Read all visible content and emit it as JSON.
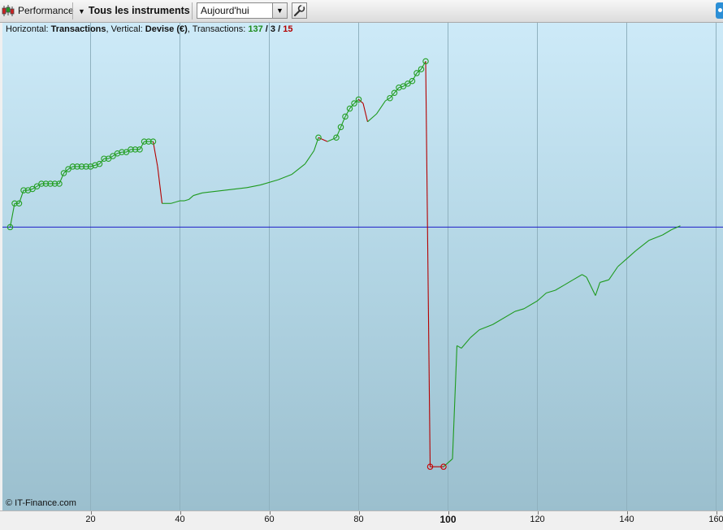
{
  "toolbar": {
    "performance_label": "Performance",
    "instruments_label": "Tous les instruments",
    "period_value": "Aujourd'hui"
  },
  "info": {
    "horizontal_key": "Horizontal: ",
    "horizontal_val": "Transactions",
    "vertical_key": ", Vertical: ",
    "vertical_val": "Devise (€)",
    "transactions_key": ", Transactions: ",
    "count_green": "137",
    "slash1": " / ",
    "count_black": "3",
    "slash2": " / ",
    "count_red": "15"
  },
  "copyright": "© IT-Finance.com",
  "colors": {
    "up": "#1e9a1e",
    "down": "#b40000",
    "baseline": "#1c1cc8",
    "marker_up": "#23a023",
    "marker_down": "#c80000"
  },
  "chart_data": {
    "type": "line",
    "title": "",
    "xlabel": "",
    "ylabel": "",
    "xlim": [
      1,
      160
    ],
    "x_ticks": [
      20,
      40,
      60,
      80,
      100,
      120,
      140,
      160
    ],
    "x_tick_bold": [
      100
    ],
    "baseline_y": 0,
    "ylim": [
      -107,
      77
    ],
    "grid": "vertical-lines",
    "series": [
      {
        "name": "",
        "points": [
          [
            2,
            0
          ],
          [
            3,
            9
          ],
          [
            4,
            9
          ],
          [
            5,
            14
          ],
          [
            6,
            14
          ],
          [
            7,
            14.5
          ],
          [
            8,
            15.5
          ],
          [
            9,
            16.5
          ],
          [
            10,
            16.5
          ],
          [
            11,
            16.5
          ],
          [
            12,
            16.5
          ],
          [
            13,
            16.5
          ],
          [
            14,
            20.5
          ],
          [
            15,
            22
          ],
          [
            16,
            23
          ],
          [
            17,
            23
          ],
          [
            18,
            23
          ],
          [
            19,
            23
          ],
          [
            20,
            23
          ],
          [
            21,
            23.5
          ],
          [
            22,
            24
          ],
          [
            23,
            26
          ],
          [
            24,
            26
          ],
          [
            25,
            27
          ],
          [
            26,
            28
          ],
          [
            27,
            28.5
          ],
          [
            28,
            28.5
          ],
          [
            29,
            29.5
          ],
          [
            30,
            29.5
          ],
          [
            31,
            29.5
          ],
          [
            32,
            32.5
          ],
          [
            33,
            32.5
          ],
          [
            34,
            32.5
          ],
          [
            35,
            23
          ],
          [
            36,
            9
          ],
          [
            37,
            9
          ],
          [
            38,
            9
          ],
          [
            39,
            9.5
          ],
          [
            40,
            10
          ],
          [
            41,
            10
          ],
          [
            42,
            10.5
          ],
          [
            43,
            12
          ],
          [
            45,
            13
          ],
          [
            50,
            14
          ],
          [
            55,
            15
          ],
          [
            58,
            16
          ],
          [
            62,
            18
          ],
          [
            65,
            20
          ],
          [
            68,
            24
          ],
          [
            70,
            29
          ],
          [
            71,
            34
          ],
          [
            73,
            32.5
          ],
          [
            75,
            34
          ],
          [
            76,
            38
          ],
          [
            77,
            42
          ],
          [
            78,
            45
          ],
          [
            79,
            47
          ],
          [
            80,
            48.5
          ],
          [
            81,
            47
          ],
          [
            82,
            40
          ],
          [
            84,
            43
          ],
          [
            86,
            48
          ],
          [
            87,
            49
          ],
          [
            88,
            51
          ],
          [
            89,
            53
          ],
          [
            90,
            53.5
          ],
          [
            91,
            54.5
          ],
          [
            92,
            55.5
          ],
          [
            93,
            58.5
          ],
          [
            94,
            60
          ],
          [
            95,
            63
          ],
          [
            96,
            -91
          ],
          [
            97,
            -91
          ],
          [
            98,
            -91
          ],
          [
            99,
            -91
          ],
          [
            101,
            -88
          ],
          [
            102,
            -45
          ],
          [
            103,
            -46
          ],
          [
            105,
            -42
          ],
          [
            107,
            -39
          ],
          [
            110,
            -37
          ],
          [
            115,
            -32
          ],
          [
            117,
            -31
          ],
          [
            120,
            -28
          ],
          [
            122,
            -25
          ],
          [
            124,
            -24
          ],
          [
            126,
            -22
          ],
          [
            128,
            -20
          ],
          [
            130,
            -18
          ],
          [
            131,
            -19
          ],
          [
            133,
            -26
          ],
          [
            134,
            -21
          ],
          [
            136,
            -20
          ],
          [
            138,
            -15
          ],
          [
            140,
            -12
          ],
          [
            142,
            -9
          ],
          [
            145,
            -5
          ],
          [
            148,
            -3
          ],
          [
            150,
            -1
          ],
          [
            152,
            0.5
          ]
        ],
        "down_segments": [
          [
            34,
            36
          ],
          [
            71,
            73
          ],
          [
            80,
            82
          ],
          [
            95,
            96
          ],
          [
            96,
            99
          ]
        ],
        "markers_up": [
          2,
          3,
          4,
          5,
          6,
          7,
          8,
          9,
          10,
          11,
          12,
          13,
          14,
          15,
          16,
          17,
          18,
          19,
          20,
          21,
          22,
          23,
          24,
          25,
          26,
          27,
          28,
          29,
          30,
          31,
          32,
          33,
          34,
          71,
          75,
          76,
          77,
          78,
          79,
          80,
          87,
          88,
          89,
          90,
          91,
          92,
          93,
          94,
          95
        ],
        "markers_down": [
          96,
          99
        ]
      }
    ]
  }
}
